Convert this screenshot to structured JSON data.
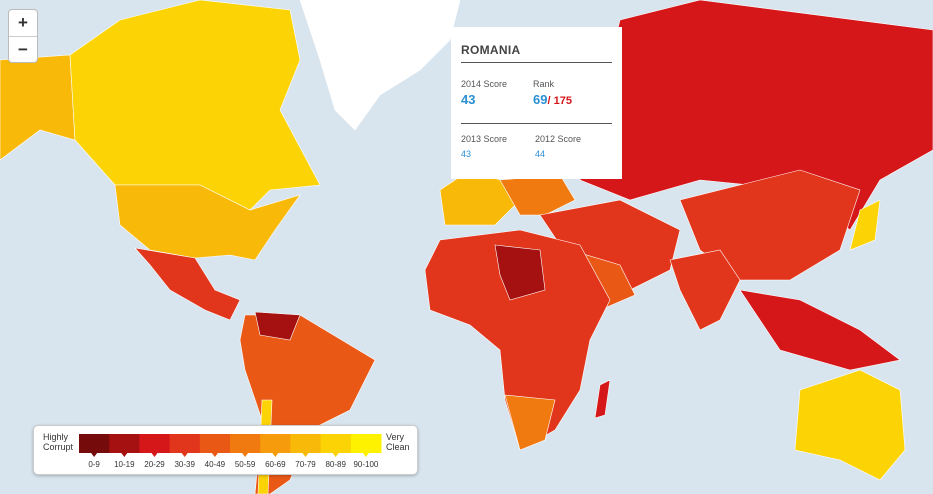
{
  "zoom": {
    "in": "+",
    "out": "−"
  },
  "popup": {
    "country": "ROMANIA",
    "score_2014_label": "2014 Score",
    "score_2014": "43",
    "rank_label": "Rank",
    "rank": "69",
    "rank_total": "/ 175",
    "score_2013_label": "2013 Score",
    "score_2013": "43",
    "score_2012_label": "2012 Score",
    "score_2012": "44"
  },
  "legend": {
    "low_label": "Highly Corrupt",
    "high_label": "Very Clean",
    "bins": [
      {
        "label": "0-9",
        "color": "#760b0b"
      },
      {
        "label": "10-19",
        "color": "#a51010"
      },
      {
        "label": "20-29",
        "color": "#d6171a"
      },
      {
        "label": "30-39",
        "color": "#e2361c"
      },
      {
        "label": "40-49",
        "color": "#ea5816"
      },
      {
        "label": "50-59",
        "color": "#f07a10"
      },
      {
        "label": "60-69",
        "color": "#f59b0c"
      },
      {
        "label": "70-79",
        "color": "#f9b908"
      },
      {
        "label": "80-89",
        "color": "#fcd305"
      },
      {
        "label": "90-100",
        "color": "#fff200"
      }
    ]
  }
}
